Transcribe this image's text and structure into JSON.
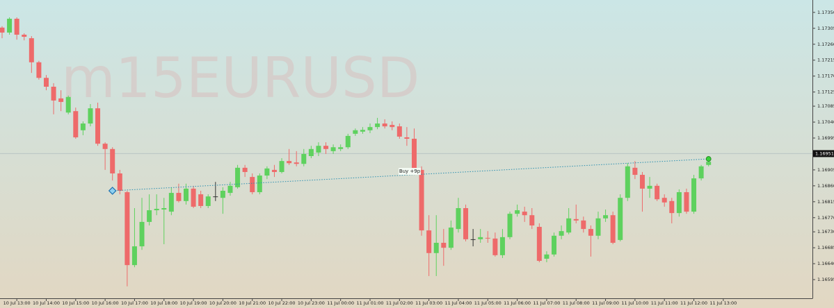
{
  "chart_data": {
    "type": "candlestick",
    "watermark": "m15EURUSD",
    "up_color": "#5ed15e",
    "down_color": "#ee6a6a",
    "ylim": [
      1.16552,
      1.17385
    ],
    "yticks": [
      {
        "value": 1.1735,
        "label": "1.17350"
      },
      1.17305,
      {
        "value": 1.1726,
        "label": "1.17260"
      },
      1.17215,
      {
        "value": 1.1717,
        "label": "1.17170"
      },
      1.17125,
      1.17085,
      {
        "value": 1.1704,
        "label": "1.17040"
      },
      1.16995,
      {
        "value": 1.1695,
        "label": "1.16950"
      },
      1.16905,
      {
        "value": 1.1686,
        "label": "1.16860"
      },
      1.16815,
      {
        "value": 1.1677,
        "label": "1.16770"
      },
      {
        "value": 1.1673,
        "label": "1.16730"
      },
      1.16685,
      {
        "value": 1.1664,
        "label": "1.16640"
      },
      1.16595
    ],
    "x_labels": [
      "10 Jul 13:00",
      "10 Jul 14:00",
      "10 Jul 15:00",
      "10 Jul 16:00",
      "10 Jul 17:00",
      "10 Jul 18:00",
      "10 Jul 19:00",
      "10 Jul 20:00",
      "10 Jul 21:00",
      "10 Jul 22:00",
      "10 Jul 23:00",
      "11 Jul 00:00",
      "11 Jul 01:00",
      "11 Jul 02:00",
      "11 Jul 03:00",
      "11 Jul 04:00",
      "11 Jul 05:00",
      "11 Jul 06:00",
      "11 Jul 07:00",
      "11 Jul 08:00",
      "11 Jul 09:00",
      "11 Jul 10:00",
      "11 Jul 11:00",
      "11 Jul 12:00",
      "11 Jul 13:00"
    ],
    "open": [
      1.17307,
      1.17293,
      1.17332,
      1.17287,
      1.17277,
      1.17209,
      1.17165,
      1.1714,
      1.17107,
      1.17067,
      1.17071,
      1.17017,
      1.17036,
      1.17079,
      1.16979,
      1.16964,
      1.16895,
      1.16842,
      1.16636,
      1.16689,
      1.16758,
      1.16791,
      1.16793,
      1.16787,
      1.1684,
      1.16817,
      1.16852,
      1.16836,
      1.16803,
      1.1683,
      1.16826,
      1.1684,
      1.16856,
      1.16911,
      1.16885,
      1.16842,
      1.16889,
      1.16905,
      1.16899,
      1.1693,
      1.16926,
      1.16922,
      1.16944,
      1.16954,
      1.16973,
      1.16958,
      1.16964,
      1.16969,
      1.17007,
      1.17013,
      1.17017,
      1.17026,
      1.17036,
      1.17032,
      1.17028,
      1.16997,
      1.16993,
      1.16905,
      1.16734,
      1.1667,
      1.16699,
      1.16685,
      1.16738,
      1.16797,
      1.16709,
      1.16709,
      1.16713,
      1.16711,
      1.16664,
      1.16715,
      1.16781,
      1.16787,
      1.16777,
      1.16744,
      1.16654,
      1.16666,
      1.16719,
      1.16728,
      1.16766,
      1.16762,
      1.16738,
      1.16719,
      1.16768,
      1.16777,
      1.16707,
      1.16826,
      1.16911,
      1.16891,
      1.16852,
      1.1686,
      1.16826,
      1.16817,
      1.16783,
      1.16842,
      1.16787,
      1.16881,
      1.16919
    ],
    "high": [
      1.17311,
      1.17336,
      1.17336,
      1.17291,
      1.17283,
      1.17213,
      1.17173,
      1.1715,
      1.1713,
      1.17115,
      1.17081,
      1.17042,
      1.17091,
      1.17095,
      1.16983,
      1.16969,
      1.16905,
      1.16846,
      1.16797,
      1.16826,
      1.16836,
      1.16836,
      1.16826,
      1.16856,
      1.16866,
      1.16866,
      1.1686,
      1.16846,
      1.16836,
      1.16871,
      1.16856,
      1.16871,
      1.16919,
      1.16919,
      1.16895,
      1.16895,
      1.16915,
      1.16919,
      1.16938,
      1.16964,
      1.16958,
      1.16964,
      1.16973,
      1.16983,
      1.16983,
      1.16977,
      1.16977,
      1.17007,
      1.17022,
      1.17026,
      1.17036,
      1.17052,
      1.17048,
      1.17042,
      1.17036,
      1.17026,
      1.17022,
      1.16915,
      1.16777,
      1.16777,
      1.16738,
      1.16762,
      1.16826,
      1.16807,
      1.16738,
      1.16738,
      1.16732,
      1.16728,
      1.16738,
      1.16787,
      1.16807,
      1.16801,
      1.16797,
      1.16754,
      1.16675,
      1.16728,
      1.16748,
      1.16797,
      1.16807,
      1.16773,
      1.16748,
      1.16787,
      1.16793,
      1.16787,
      1.16836,
      1.16924,
      1.1693,
      1.16899,
      1.16885,
      1.16866,
      1.16836,
      1.16826,
      1.1685,
      1.16852,
      1.16891,
      1.16919,
      1.16938
    ],
    "low": [
      1.17277,
      1.17287,
      1.17273,
      1.17271,
      1.17179,
      1.1716,
      1.1713,
      1.17062,
      1.17071,
      1.17062,
      1.16993,
      1.17003,
      1.17028,
      1.16973,
      1.16905,
      1.16875,
      1.16836,
      1.16576,
      1.1663,
      1.16679,
      1.16748,
      1.16777,
      1.16695,
      1.16777,
      1.16813,
      1.16807,
      1.16797,
      1.16797,
      1.16797,
      1.16817,
      1.16781,
      1.16832,
      1.16852,
      1.16885,
      1.16836,
      1.16836,
      1.16879,
      1.16885,
      1.16895,
      1.16919,
      1.16915,
      1.16915,
      1.16938,
      1.16944,
      1.1695,
      1.1695,
      1.16958,
      1.16964,
      1.17001,
      1.17007,
      1.17009,
      1.1702,
      1.17022,
      1.17017,
      1.16993,
      1.16973,
      1.16899,
      1.16719,
      1.16605,
      1.16605,
      1.16634,
      1.16679,
      1.16728,
      1.16703,
      1.16689,
      1.16699,
      1.16699,
      1.1666,
      1.16656,
      1.16709,
      1.16773,
      1.16758,
      1.16738,
      1.16644,
      1.16644,
      1.1666,
      1.16709,
      1.16723,
      1.16754,
      1.16728,
      1.1666,
      1.16709,
      1.16758,
      1.16695,
      1.16703,
      1.16817,
      1.16879,
      1.16787,
      1.16826,
      1.16817,
      1.16801,
      1.16754,
      1.16773,
      1.16781,
      1.16781,
      1.16875,
      1.16915
    ],
    "close": [
      1.17293,
      1.17332,
      1.17287,
      1.17281,
      1.17209,
      1.17165,
      1.1714,
      1.17101,
      1.17097,
      1.17111,
      1.16997,
      1.17036,
      1.17079,
      1.16979,
      1.16964,
      1.16895,
      1.16846,
      1.16636,
      1.16689,
      1.16758,
      1.16791,
      1.16795,
      1.16797,
      1.1684,
      1.16817,
      1.16852,
      1.16801,
      1.16803,
      1.1683,
      1.1683,
      1.16846,
      1.1686,
      1.16911,
      1.16899,
      1.16842,
      1.16889,
      1.16909,
      1.16899,
      1.1693,
      1.16924,
      1.16922,
      1.1695,
      1.16964,
      1.16973,
      1.16964,
      1.16969,
      1.16969,
      1.17001,
      1.17017,
      1.17018,
      1.17026,
      1.17036,
      1.17028,
      1.17026,
      1.16999,
      1.16993,
      1.16909,
      1.16734,
      1.1667,
      1.16699,
      1.16685,
      1.16742,
      1.16797,
      1.16709,
      1.16709,
      1.16715,
      1.16711,
      1.16664,
      1.16715,
      1.16781,
      1.16791,
      1.16777,
      1.16748,
      1.16648,
      1.16666,
      1.16719,
      1.16732,
      1.16768,
      1.16762,
      1.16738,
      1.16719,
      1.16768,
      1.16777,
      1.16699,
      1.16826,
      1.16915,
      1.16891,
      1.16852,
      1.1686,
      1.16822,
      1.16813,
      1.16783,
      1.16842,
      1.16787,
      1.16881,
      1.16915,
      1.16928
    ],
    "current_price": 1.16951,
    "trade": {
      "label": "Buy +9p",
      "entry": 1.16846,
      "exit": 1.16936
    }
  }
}
